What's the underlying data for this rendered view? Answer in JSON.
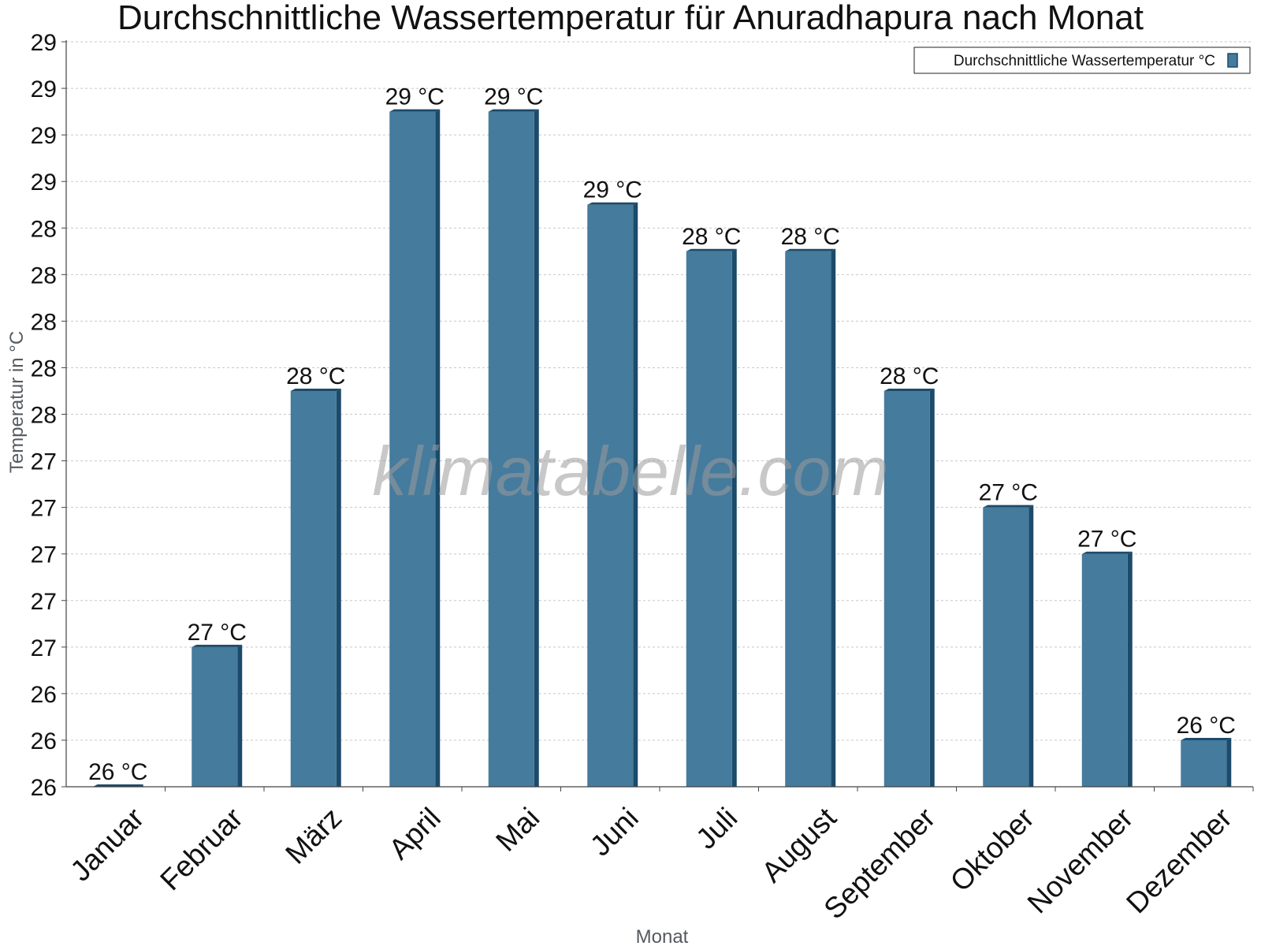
{
  "chart_data": {
    "type": "bar",
    "title": "Durchschnittliche Wassertemperatur für Anuradhapura nach Monat",
    "xlabel": "Monat",
    "ylabel": "Temperatur in °C",
    "categories": [
      "Januar",
      "Februar",
      "März",
      "April",
      "Mai",
      "Juni",
      "Juli",
      "August",
      "September",
      "Oktober",
      "November",
      "Dezember"
    ],
    "series": [
      {
        "name": "Durchschnittliche Wassertemperatur °C",
        "values": [
          26.0,
          26.6,
          27.7,
          28.9,
          28.9,
          28.5,
          28.3,
          28.3,
          27.7,
          27.2,
          27.0,
          26.2
        ],
        "labels": [
          "26 °C",
          "27 °C",
          "28 °C",
          "29 °C",
          "29 °C",
          "29 °C",
          "28 °C",
          "28 °C",
          "28 °C",
          "27 °C",
          "27 °C",
          "26 °C"
        ],
        "color": "#457b9d",
        "side_color": "#1c4a6a"
      }
    ],
    "ylim": [
      26.0,
      29.2
    ],
    "yticks": [
      26.0,
      26.2,
      26.4,
      26.6,
      26.8,
      27.0,
      27.2,
      27.4,
      27.6,
      27.8,
      28.0,
      28.2,
      28.4,
      28.6,
      28.8,
      29.0,
      29.2
    ],
    "ytick_labels": [
      "26",
      "26",
      "26",
      "27",
      "27",
      "27",
      "27",
      "27",
      "28",
      "28",
      "28",
      "28",
      "28",
      "29",
      "29",
      "29",
      "29"
    ],
    "grid": true,
    "legend_position": "top-right",
    "watermark": "klimatabelle.com"
  }
}
